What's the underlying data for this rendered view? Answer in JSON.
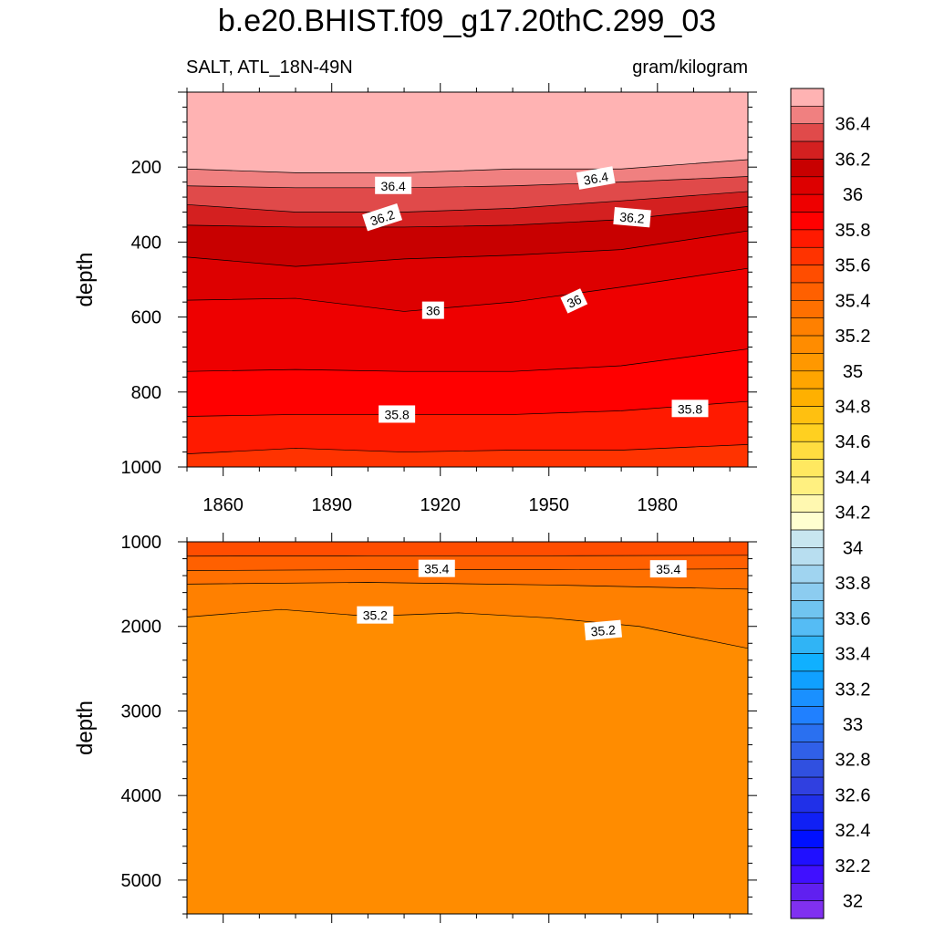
{
  "title": "b.e20.BHIST.f09_g17.20thC.299_03",
  "subtitle_left": "SALT, ATL_18N-49N",
  "subtitle_right": "gram/kilogram",
  "chart_data": [
    {
      "type": "contour",
      "panel": "upper",
      "ylabel": "depth",
      "xlim": [
        1850,
        2005
      ],
      "ylim": [
        0,
        1000
      ],
      "y_reversed": true,
      "x_ticks": [
        1860,
        1890,
        1920,
        1950,
        1980
      ],
      "y_ticks": [
        200,
        400,
        600,
        800,
        1000
      ],
      "surface_fill_level": 36.6,
      "contours": [
        {
          "level": 36.5,
          "x": [
            1850,
            1880,
            1910,
            1940,
            1970,
            2005
          ],
          "y": [
            205,
            215,
            215,
            205,
            205,
            180
          ]
        },
        {
          "level": 36.4,
          "x": [
            1850,
            1880,
            1910,
            1940,
            1970,
            2005
          ],
          "y": [
            250,
            255,
            255,
            250,
            240,
            225
          ]
        },
        {
          "level": 36.3,
          "x": [
            1850,
            1880,
            1910,
            1940,
            1970,
            2005
          ],
          "y": [
            300,
            320,
            320,
            310,
            290,
            265
          ]
        },
        {
          "level": 36.2,
          "x": [
            1850,
            1880,
            1910,
            1940,
            1970,
            2005
          ],
          "y": [
            355,
            360,
            360,
            355,
            340,
            305
          ]
        },
        {
          "level": 36.1,
          "x": [
            1850,
            1880,
            1910,
            1940,
            1970,
            2005
          ],
          "y": [
            440,
            465,
            445,
            435,
            420,
            370
          ]
        },
        {
          "level": 36.0,
          "x": [
            1850,
            1880,
            1910,
            1940,
            1970,
            2005
          ],
          "y": [
            555,
            550,
            585,
            560,
            520,
            470
          ]
        },
        {
          "level": 35.9,
          "x": [
            1850,
            1880,
            1910,
            1940,
            1970,
            2005
          ],
          "y": [
            745,
            740,
            745,
            745,
            730,
            685
          ]
        },
        {
          "level": 35.8,
          "x": [
            1850,
            1880,
            1910,
            1940,
            1970,
            2005
          ],
          "y": [
            865,
            860,
            860,
            860,
            850,
            825
          ]
        },
        {
          "level": 35.7,
          "x": [
            1850,
            1880,
            1910,
            1940,
            1970,
            2005
          ],
          "y": [
            965,
            950,
            960,
            955,
            955,
            940
          ]
        }
      ],
      "labels": [
        {
          "text": "36.4",
          "x": 1907,
          "y": 250,
          "angle": 0
        },
        {
          "text": "36.4",
          "x": 1963,
          "y": 230,
          "angle": -10
        },
        {
          "text": "36.2",
          "x": 1904,
          "y": 335,
          "angle": -18
        },
        {
          "text": "36.2",
          "x": 1973,
          "y": 335,
          "angle": 5
        },
        {
          "text": "36",
          "x": 1918,
          "y": 583,
          "angle": 0
        },
        {
          "text": "36",
          "x": 1957,
          "y": 558,
          "angle": -25
        },
        {
          "text": "35.8",
          "x": 1908,
          "y": 860,
          "angle": 0
        },
        {
          "text": "35.8",
          "x": 1989,
          "y": 845,
          "angle": 0
        }
      ]
    },
    {
      "type": "contour",
      "panel": "lower",
      "ylabel": "depth",
      "xlim": [
        1850,
        2005
      ],
      "ylim": [
        1000,
        5400
      ],
      "y_reversed": true,
      "y_ticks": [
        1000,
        2000,
        3000,
        4000,
        5000
      ],
      "surface_fill_level": 35.6,
      "contours": [
        {
          "level": 35.5,
          "x": [
            1850,
            1900,
            1950,
            2005
          ],
          "y": [
            1170,
            1165,
            1165,
            1160
          ]
        },
        {
          "level": 35.4,
          "x": [
            1850,
            1900,
            1950,
            2005
          ],
          "y": [
            1340,
            1330,
            1330,
            1320
          ]
        },
        {
          "level": 35.3,
          "x": [
            1850,
            1900,
            1950,
            2005
          ],
          "y": [
            1500,
            1480,
            1510,
            1560
          ]
        },
        {
          "level": 35.2,
          "x": [
            1850,
            1876,
            1900,
            1925,
            1950,
            1975,
            2005
          ],
          "y": [
            1890,
            1800,
            1880,
            1840,
            1900,
            2000,
            2260
          ]
        }
      ],
      "labels": [
        {
          "text": "35.4",
          "x": 1919,
          "y": 1320,
          "angle": 0
        },
        {
          "text": "35.4",
          "x": 1983,
          "y": 1325,
          "angle": 0
        },
        {
          "text": "35.2",
          "x": 1902,
          "y": 1870,
          "angle": 0
        },
        {
          "text": "35.2",
          "x": 1965,
          "y": 2050,
          "angle": -5
        }
      ]
    }
  ],
  "colorbar": {
    "label_values": [
      "36.4",
      "36.2",
      "36",
      "35.8",
      "35.6",
      "35.4",
      "35.2",
      "35",
      "34.8",
      "34.6",
      "34.4",
      "34.2",
      "34",
      "33.8",
      "33.6",
      "33.4",
      "33.2",
      "33",
      "32.8",
      "32.6",
      "32.4",
      "32.2",
      "32"
    ],
    "levels": [
      {
        "value": 36.6,
        "color": "#FFB3B3"
      },
      {
        "value": 36.5,
        "color": "#F08080"
      },
      {
        "value": 36.4,
        "color": "#E04A4A"
      },
      {
        "value": 36.3,
        "color": "#D42020"
      },
      {
        "value": 36.2,
        "color": "#C80000"
      },
      {
        "value": 36.1,
        "color": "#DD0000"
      },
      {
        "value": 36.0,
        "color": "#EE0000"
      },
      {
        "value": 35.9,
        "color": "#FF0000"
      },
      {
        "value": 35.8,
        "color": "#FF1A00"
      },
      {
        "value": 35.7,
        "color": "#FF3300"
      },
      {
        "value": 35.6,
        "color": "#FF4D00"
      },
      {
        "value": 35.5,
        "color": "#FF6000"
      },
      {
        "value": 35.4,
        "color": "#FF7000"
      },
      {
        "value": 35.3,
        "color": "#FF8000"
      },
      {
        "value": 35.2,
        "color": "#FF8C00"
      },
      {
        "value": 35.1,
        "color": "#FF9800"
      },
      {
        "value": 35.0,
        "color": "#FFA500"
      },
      {
        "value": 34.9,
        "color": "#FFB000"
      },
      {
        "value": 34.8,
        "color": "#FFC010"
      },
      {
        "value": 34.7,
        "color": "#FFD020"
      },
      {
        "value": 34.6,
        "color": "#FFDD40"
      },
      {
        "value": 34.5,
        "color": "#FFE860"
      },
      {
        "value": 34.4,
        "color": "#FFF080"
      },
      {
        "value": 34.3,
        "color": "#FFF8B0"
      },
      {
        "value": 34.2,
        "color": "#FFFFD0"
      },
      {
        "value": 34.1,
        "color": "#C8E6F0"
      },
      {
        "value": 34.0,
        "color": "#B8DEF0"
      },
      {
        "value": 33.9,
        "color": "#A0D4F0"
      },
      {
        "value": 33.8,
        "color": "#8CCCF0"
      },
      {
        "value": 33.7,
        "color": "#70C4F0"
      },
      {
        "value": 33.6,
        "color": "#55BCF5"
      },
      {
        "value": 33.5,
        "color": "#30B4F5"
      },
      {
        "value": 33.4,
        "color": "#10B0FF"
      },
      {
        "value": 33.3,
        "color": "#10A0FF"
      },
      {
        "value": 33.2,
        "color": "#1A90FF"
      },
      {
        "value": 33.1,
        "color": "#2080FF"
      },
      {
        "value": 33.0,
        "color": "#2A70F0"
      },
      {
        "value": 32.9,
        "color": "#3060E8"
      },
      {
        "value": 32.8,
        "color": "#3050E0"
      },
      {
        "value": 32.7,
        "color": "#3040E0"
      },
      {
        "value": 32.6,
        "color": "#2030E8"
      },
      {
        "value": 32.5,
        "color": "#1020F5"
      },
      {
        "value": 32.4,
        "color": "#0010FF"
      },
      {
        "value": 32.3,
        "color": "#2010FF"
      },
      {
        "value": 32.2,
        "color": "#4010FF"
      },
      {
        "value": 32.1,
        "color": "#6020F0"
      },
      {
        "value": 32.0,
        "color": "#8030F0"
      }
    ]
  }
}
